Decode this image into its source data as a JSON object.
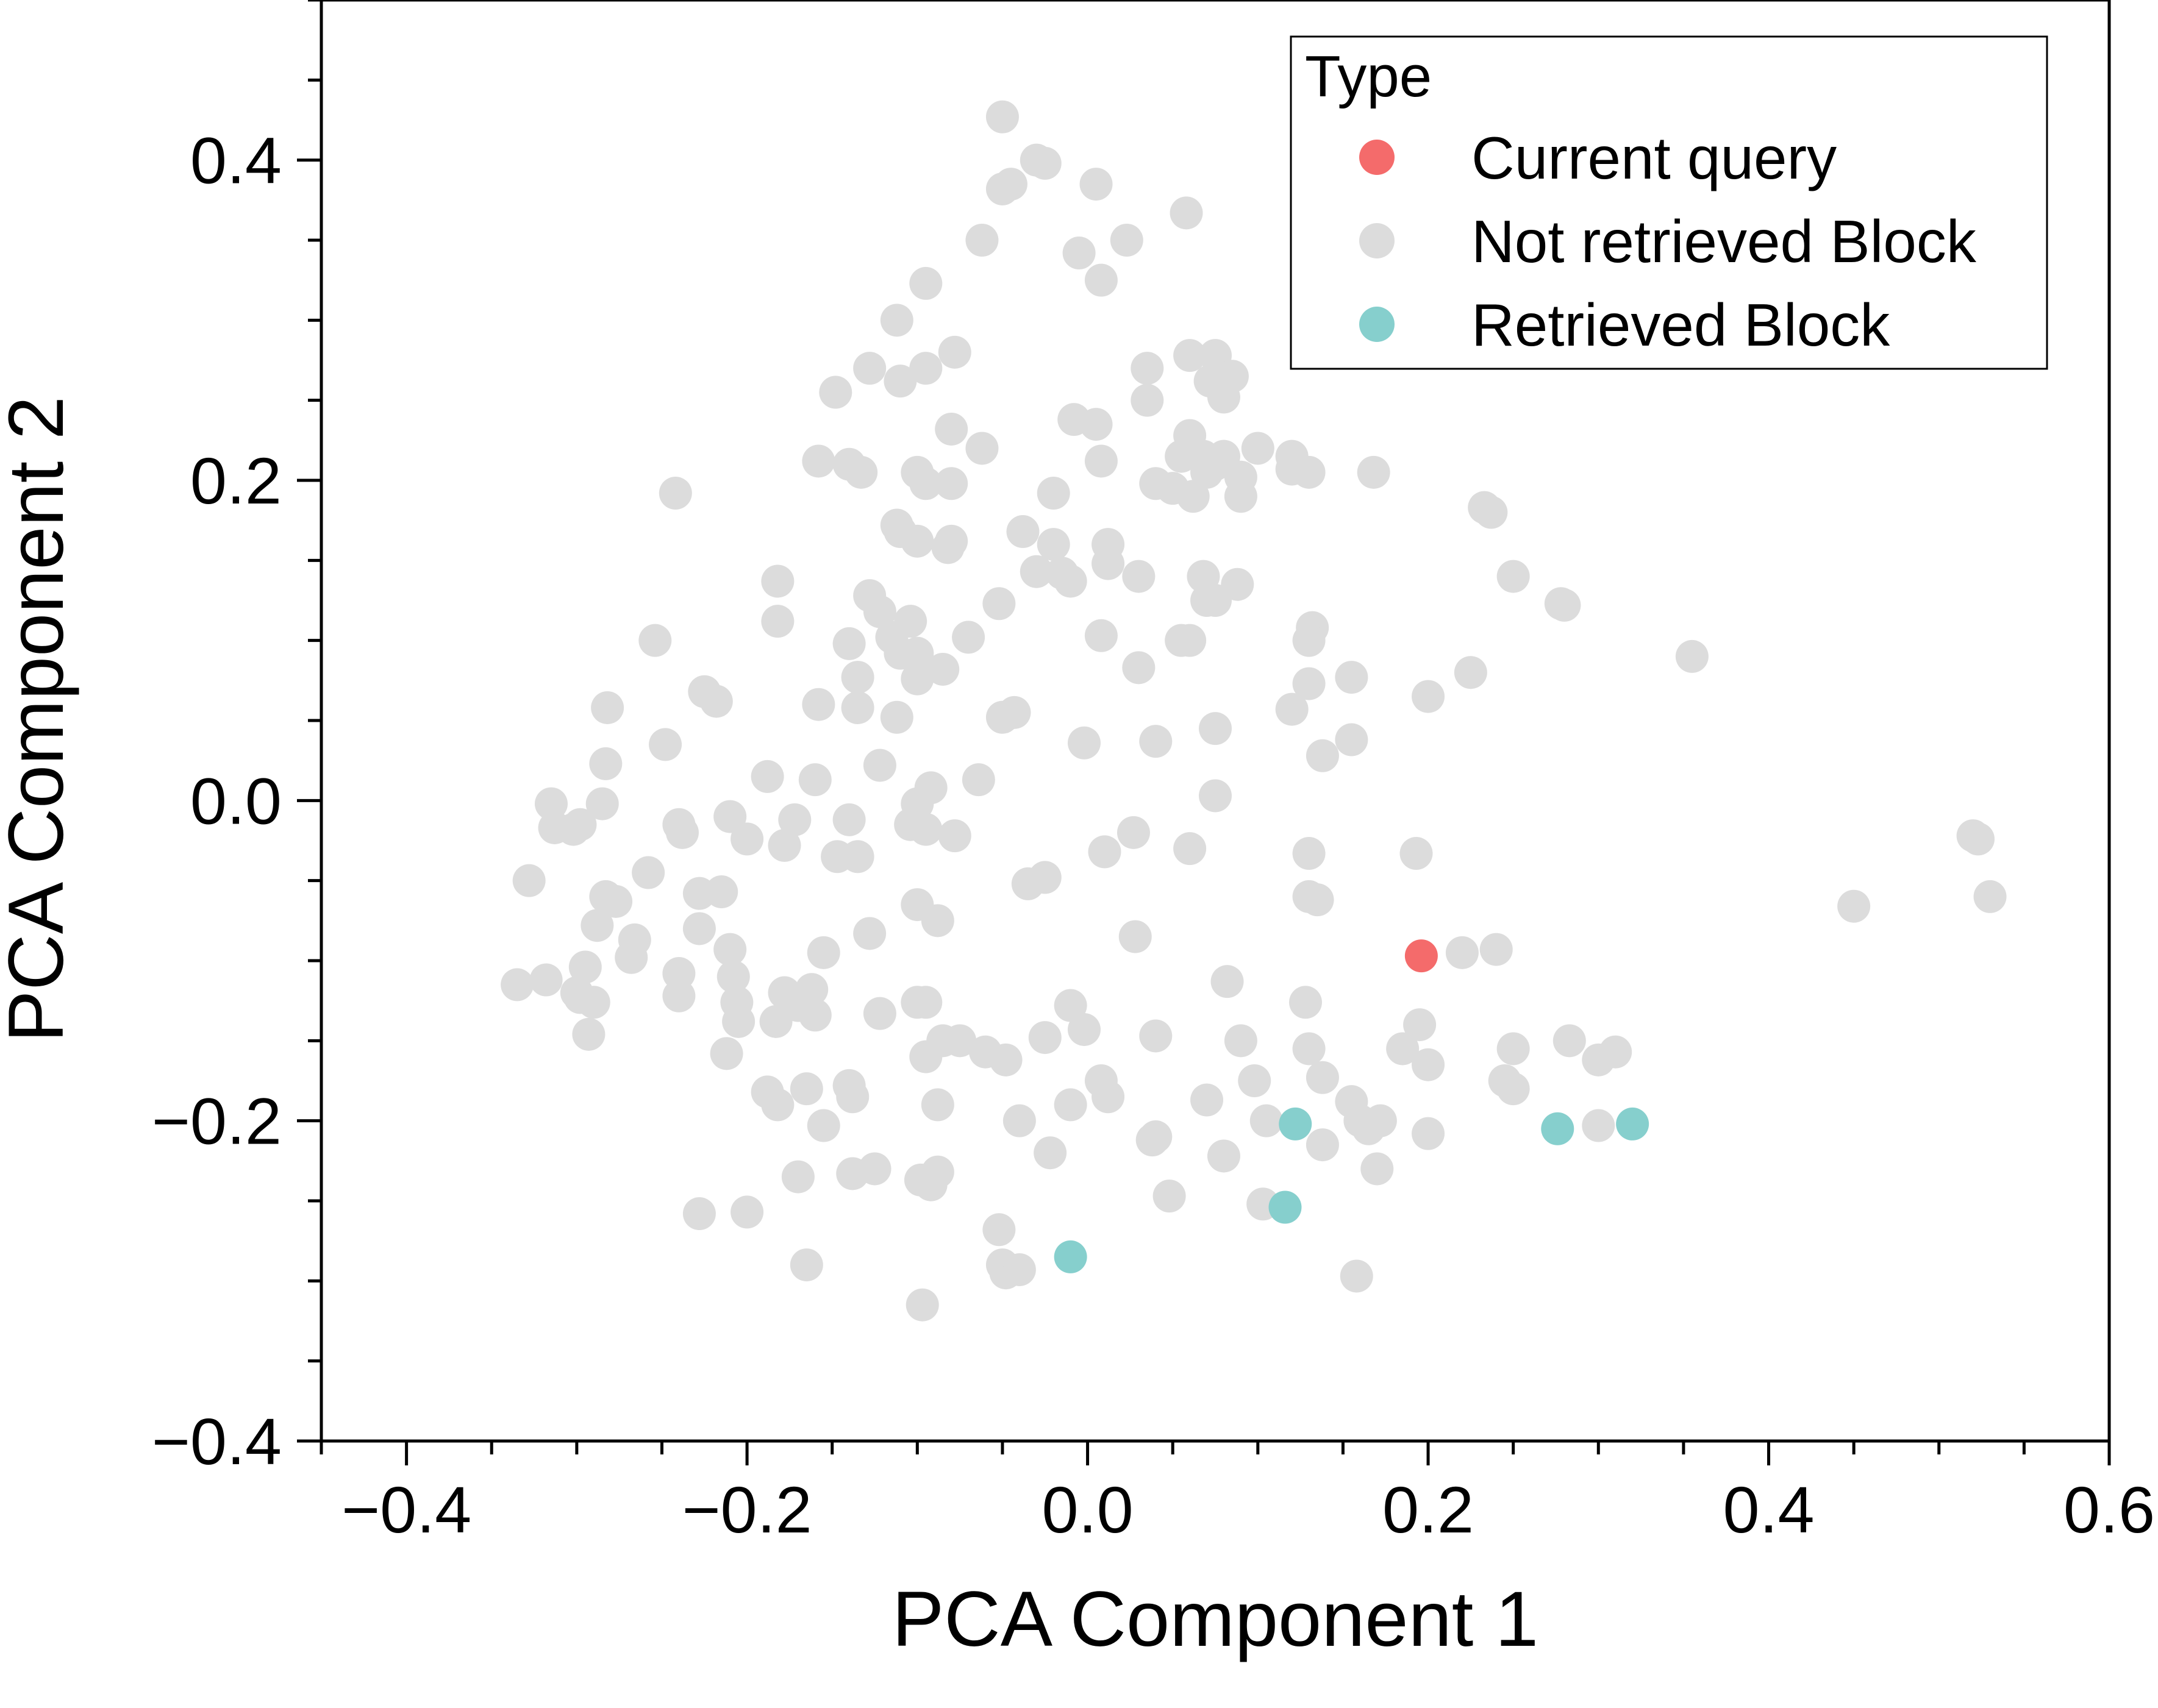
{
  "chart_data": {
    "type": "scatter",
    "xlabel": "PCA Component 1",
    "ylabel": "PCA Component 2",
    "xlim": [
      -0.45,
      0.6
    ],
    "ylim": [
      -0.4,
      0.5
    ],
    "xticks": [
      -0.4,
      -0.2,
      0.0,
      0.2,
      0.4,
      0.6
    ],
    "xtick_labels": [
      "−0.4",
      "−0.2",
      "0.0",
      "0.2",
      "0.4",
      "0.6"
    ],
    "yticks": [
      -0.4,
      -0.2,
      0.0,
      0.2,
      0.4
    ],
    "ytick_labels": [
      "−0.4",
      "−0.2",
      "0.0",
      "0.2",
      "0.4"
    ],
    "grid": false,
    "legend": {
      "title": "Type",
      "position": "top-right"
    },
    "series": [
      {
        "name": "Not retrieved Block",
        "color": "#dcdcdc",
        "points": [
          [
            -0.05,
            0.427
          ],
          [
            -0.03,
            0.4
          ],
          [
            -0.025,
            0.398
          ],
          [
            -0.045,
            0.385
          ],
          [
            -0.05,
            0.382
          ],
          [
            0.005,
            0.385
          ],
          [
            0.058,
            0.367
          ],
          [
            -0.062,
            0.35
          ],
          [
            -0.005,
            0.342
          ],
          [
            0.023,
            0.35
          ],
          [
            0.008,
            0.325
          ],
          [
            -0.095,
            0.323
          ],
          [
            -0.112,
            0.3
          ],
          [
            -0.078,
            0.28
          ],
          [
            -0.095,
            0.27
          ],
          [
            -0.148,
            0.255
          ],
          [
            -0.11,
            0.262
          ],
          [
            -0.128,
            0.27
          ],
          [
            0.035,
            0.27
          ],
          [
            0.06,
            0.278
          ],
          [
            0.075,
            0.278
          ],
          [
            0.072,
            0.262
          ],
          [
            0.085,
            0.265
          ],
          [
            0.08,
            0.252
          ],
          [
            0.035,
            0.25
          ],
          [
            -0.08,
            0.232
          ],
          [
            -0.062,
            0.22
          ],
          [
            -0.008,
            0.238
          ],
          [
            0.005,
            0.235
          ],
          [
            0.06,
            0.228
          ],
          [
            0.08,
            0.215
          ],
          [
            0.1,
            0.22
          ],
          [
            0.12,
            0.215
          ],
          [
            0.055,
            0.215
          ],
          [
            0.07,
            0.205
          ],
          [
            0.068,
            0.215
          ],
          [
            0.04,
            0.198
          ],
          [
            0.05,
            0.195
          ],
          [
            0.075,
            0.21
          ],
          [
            0.09,
            0.202
          ],
          [
            0.12,
            0.207
          ],
          [
            0.13,
            0.205
          ],
          [
            0.168,
            0.205
          ],
          [
            -0.158,
            0.212
          ],
          [
            -0.14,
            0.21
          ],
          [
            -0.133,
            0.205
          ],
          [
            -0.1,
            0.205
          ],
          [
            -0.095,
            0.198
          ],
          [
            -0.08,
            0.198
          ],
          [
            -0.242,
            0.192
          ],
          [
            -0.02,
            0.192
          ],
          [
            0.008,
            0.212
          ],
          [
            0.062,
            0.19
          ],
          [
            0.09,
            0.19
          ],
          [
            0.233,
            0.183
          ],
          [
            0.237,
            0.18
          ],
          [
            -0.112,
            0.172
          ],
          [
            -0.11,
            0.168
          ],
          [
            -0.038,
            0.168
          ],
          [
            -0.08,
            0.162
          ],
          [
            -0.1,
            0.162
          ],
          [
            -0.082,
            0.158
          ],
          [
            -0.02,
            0.16
          ],
          [
            0.012,
            0.16
          ],
          [
            0.012,
            0.148
          ],
          [
            -0.03,
            0.143
          ],
          [
            -0.015,
            0.142
          ],
          [
            -0.01,
            0.137
          ],
          [
            0.03,
            0.14
          ],
          [
            0.068,
            0.14
          ],
          [
            0.088,
            0.135
          ],
          [
            0.07,
            0.125
          ],
          [
            0.075,
            0.125
          ],
          [
            0.25,
            0.14
          ],
          [
            -0.182,
            0.137
          ],
          [
            -0.182,
            0.112
          ],
          [
            -0.128,
            0.128
          ],
          [
            -0.122,
            0.118
          ],
          [
            -0.104,
            0.112
          ],
          [
            -0.115,
            0.102
          ],
          [
            -0.11,
            0.092
          ],
          [
            -0.1,
            0.092
          ],
          [
            -0.14,
            0.098
          ],
          [
            -0.07,
            0.102
          ],
          [
            -0.052,
            0.123
          ],
          [
            0.008,
            0.103
          ],
          [
            0.055,
            0.1
          ],
          [
            0.06,
            0.1
          ],
          [
            0.132,
            0.108
          ],
          [
            0.13,
            0.1
          ],
          [
            0.278,
            0.123
          ],
          [
            0.28,
            0.122
          ],
          [
            0.355,
            0.09
          ],
          [
            -0.254,
            0.1
          ],
          [
            -0.135,
            0.077
          ],
          [
            -0.1,
            0.076
          ],
          [
            -0.085,
            0.082
          ],
          [
            -0.135,
            0.058
          ],
          [
            -0.158,
            0.06
          ],
          [
            -0.112,
            0.052
          ],
          [
            -0.05,
            0.052
          ],
          [
            -0.043,
            0.055
          ],
          [
            0.03,
            0.083
          ],
          [
            0.075,
            0.045
          ],
          [
            0.12,
            0.057
          ],
          [
            0.13,
            0.073
          ],
          [
            0.155,
            0.077
          ],
          [
            0.2,
            0.065
          ],
          [
            0.225,
            0.08
          ],
          [
            -0.225,
            0.068
          ],
          [
            -0.218,
            0.062
          ],
          [
            -0.282,
            0.058
          ],
          [
            -0.283,
            0.023
          ],
          [
            -0.248,
            0.035
          ],
          [
            -0.122,
            0.022
          ],
          [
            -0.188,
            0.015
          ],
          [
            -0.16,
            0.013
          ],
          [
            -0.064,
            0.013
          ],
          [
            -0.092,
            0.008
          ],
          [
            -0.002,
            0.036
          ],
          [
            0.04,
            0.037
          ],
          [
            0.138,
            0.028
          ],
          [
            0.155,
            0.038
          ],
          [
            -0.315,
            -0.002
          ],
          [
            -0.313,
            -0.017
          ],
          [
            -0.302,
            -0.018
          ],
          [
            -0.298,
            -0.015
          ],
          [
            -0.285,
            -0.002
          ],
          [
            -0.21,
            -0.01
          ],
          [
            -0.2,
            -0.024
          ],
          [
            -0.172,
            -0.012
          ],
          [
            -0.14,
            -0.012
          ],
          [
            -0.1,
            -0.002
          ],
          [
            -0.104,
            -0.015
          ],
          [
            -0.095,
            -0.018
          ],
          [
            -0.078,
            -0.022
          ],
          [
            0.075,
            0.003
          ],
          [
            -0.24,
            -0.015
          ],
          [
            -0.238,
            -0.02
          ],
          [
            -0.178,
            -0.028
          ],
          [
            -0.147,
            -0.035
          ],
          [
            -0.135,
            -0.035
          ],
          [
            0.01,
            -0.032
          ],
          [
            0.027,
            -0.02
          ],
          [
            0.06,
            -0.03
          ],
          [
            0.13,
            -0.033
          ],
          [
            0.193,
            -0.033
          ],
          [
            -0.328,
            -0.05
          ],
          [
            -0.283,
            -0.06
          ],
          [
            -0.277,
            -0.063
          ],
          [
            -0.258,
            -0.045
          ],
          [
            -0.228,
            -0.058
          ],
          [
            -0.215,
            -0.057
          ],
          [
            -0.1,
            -0.065
          ],
          [
            -0.088,
            -0.075
          ],
          [
            -0.035,
            -0.052
          ],
          [
            -0.025,
            -0.048
          ],
          [
            0.13,
            -0.06
          ],
          [
            0.135,
            -0.062
          ],
          [
            0.45,
            -0.066
          ],
          [
            0.52,
            -0.022
          ],
          [
            0.523,
            -0.024
          ],
          [
            0.53,
            -0.06
          ],
          [
            -0.288,
            -0.078
          ],
          [
            -0.266,
            -0.087
          ],
          [
            -0.268,
            -0.098
          ],
          [
            -0.228,
            -0.08
          ],
          [
            -0.21,
            -0.093
          ],
          [
            -0.128,
            -0.083
          ],
          [
            -0.155,
            -0.095
          ],
          [
            0.028,
            -0.085
          ],
          [
            0.22,
            -0.095
          ],
          [
            0.24,
            -0.093
          ],
          [
            -0.335,
            -0.115
          ],
          [
            -0.318,
            -0.112
          ],
          [
            -0.3,
            -0.12
          ],
          [
            -0.295,
            -0.104
          ],
          [
            -0.298,
            -0.123
          ],
          [
            -0.29,
            -0.126
          ],
          [
            -0.293,
            -0.146
          ],
          [
            -0.24,
            -0.108
          ],
          [
            -0.24,
            -0.122
          ],
          [
            -0.208,
            -0.11
          ],
          [
            -0.206,
            -0.126
          ],
          [
            -0.205,
            -0.138
          ],
          [
            -0.183,
            -0.138
          ],
          [
            -0.178,
            -0.12
          ],
          [
            -0.17,
            -0.128
          ],
          [
            -0.162,
            -0.118
          ],
          [
            -0.16,
            -0.134
          ],
          [
            -0.122,
            -0.133
          ],
          [
            -0.1,
            -0.126
          ],
          [
            -0.095,
            -0.126
          ],
          [
            -0.01,
            -0.128
          ],
          [
            0.082,
            -0.113
          ],
          [
            0.128,
            -0.126
          ],
          [
            -0.212,
            -0.158
          ],
          [
            -0.188,
            -0.182
          ],
          [
            -0.182,
            -0.19
          ],
          [
            -0.165,
            -0.18
          ],
          [
            -0.14,
            -0.178
          ],
          [
            -0.138,
            -0.185
          ],
          [
            -0.095,
            -0.16
          ],
          [
            -0.085,
            -0.15
          ],
          [
            -0.075,
            -0.15
          ],
          [
            -0.06,
            -0.157
          ],
          [
            -0.048,
            -0.162
          ],
          [
            -0.025,
            -0.148
          ],
          [
            -0.002,
            -0.143
          ],
          [
            0.04,
            -0.147
          ],
          [
            0.09,
            -0.15
          ],
          [
            0.13,
            -0.155
          ],
          [
            0.195,
            -0.14
          ],
          [
            0.185,
            -0.155
          ],
          [
            0.2,
            -0.165
          ],
          [
            0.25,
            -0.155
          ],
          [
            0.245,
            -0.175
          ],
          [
            0.25,
            -0.18
          ],
          [
            0.283,
            -0.15
          ],
          [
            0.3,
            -0.162
          ],
          [
            0.31,
            -0.157
          ],
          [
            0.098,
            -0.175
          ],
          [
            0.138,
            -0.173
          ],
          [
            0.07,
            -0.187
          ],
          [
            0.008,
            -0.175
          ],
          [
            0.012,
            -0.185
          ],
          [
            -0.01,
            -0.19
          ],
          [
            -0.088,
            -0.19
          ],
          [
            -0.155,
            -0.203
          ],
          [
            -0.04,
            -0.2
          ],
          [
            0.105,
            -0.2
          ],
          [
            0.155,
            -0.188
          ],
          [
            0.16,
            -0.2
          ],
          [
            0.165,
            -0.205
          ],
          [
            0.172,
            -0.2
          ],
          [
            0.2,
            -0.208
          ],
          [
            0.3,
            -0.203
          ],
          [
            -0.228,
            -0.258
          ],
          [
            -0.2,
            -0.257
          ],
          [
            -0.17,
            -0.235
          ],
          [
            -0.138,
            -0.233
          ],
          [
            -0.125,
            -0.23
          ],
          [
            -0.098,
            -0.237
          ],
          [
            -0.092,
            -0.24
          ],
          [
            -0.088,
            -0.232
          ],
          [
            -0.022,
            -0.22
          ],
          [
            0.038,
            -0.212
          ],
          [
            0.04,
            -0.21
          ],
          [
            0.08,
            -0.222
          ],
          [
            0.138,
            -0.215
          ],
          [
            0.17,
            -0.23
          ],
          [
            0.048,
            -0.247
          ],
          [
            0.103,
            -0.252
          ],
          [
            -0.052,
            -0.268
          ],
          [
            -0.165,
            -0.29
          ],
          [
            -0.05,
            -0.29
          ],
          [
            -0.048,
            -0.295
          ],
          [
            -0.04,
            -0.293
          ],
          [
            0.158,
            -0.297
          ],
          [
            -0.097,
            -0.315
          ]
        ]
      },
      {
        "name": "Retrieved Block",
        "color": "#86cfcd",
        "points": [
          [
            -0.01,
            -0.285
          ],
          [
            0.122,
            -0.202
          ],
          [
            0.116,
            -0.254
          ],
          [
            0.276,
            -0.205
          ],
          [
            0.32,
            -0.202
          ]
        ]
      },
      {
        "name": "Current query",
        "color": "#f46b6b",
        "points": [
          [
            0.196,
            -0.097
          ]
        ]
      }
    ]
  }
}
